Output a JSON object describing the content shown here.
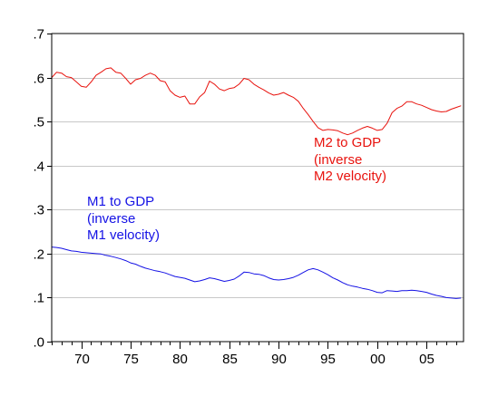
{
  "colors": {
    "m2": "#e8130e",
    "m1": "#1512e5",
    "grid": "#c8c8c8",
    "axis": "#000000",
    "background": "#ffffff"
  },
  "annotations": {
    "m2": [
      "M2 to GDP",
      "(inverse",
      "M2 velocity)"
    ],
    "m1": [
      "M1 to GDP",
      "(inverse",
      "M1 velocity)"
    ]
  },
  "chart_data": {
    "type": "line",
    "title": "",
    "xlabel": "",
    "ylabel": "",
    "xlim": [
      1967,
      2008.75
    ],
    "ylim": [
      0,
      0.7
    ],
    "grid": "horizontal",
    "legend": "none",
    "x_ticks": [
      {
        "value": 1970,
        "label": "70"
      },
      {
        "value": 1975,
        "label": "75"
      },
      {
        "value": 1980,
        "label": "80"
      },
      {
        "value": 1985,
        "label": "85"
      },
      {
        "value": 1990,
        "label": "90"
      },
      {
        "value": 1995,
        "label": "95"
      },
      {
        "value": 2000,
        "label": "00"
      },
      {
        "value": 2005,
        "label": "05"
      }
    ],
    "y_ticks": [
      {
        "value": 0.0,
        "label": ".0"
      },
      {
        "value": 0.1,
        "label": ".1"
      },
      {
        "value": 0.2,
        "label": ".2"
      },
      {
        "value": 0.3,
        "label": ".3"
      },
      {
        "value": 0.4,
        "label": ".4"
      },
      {
        "value": 0.5,
        "label": ".5"
      },
      {
        "value": 0.6,
        "label": ".6"
      },
      {
        "value": 0.7,
        "label": ".7"
      }
    ],
    "series": [
      {
        "key": "m2",
        "x": [
          1967.0,
          1967.5,
          1968.0,
          1968.5,
          1969.0,
          1969.5,
          1970.0,
          1970.5,
          1971.0,
          1971.5,
          1972.0,
          1972.5,
          1973.0,
          1973.5,
          1974.0,
          1974.5,
          1975.0,
          1975.5,
          1976.0,
          1976.5,
          1977.0,
          1977.5,
          1978.0,
          1978.5,
          1979.0,
          1979.5,
          1980.0,
          1980.5,
          1981.0,
          1981.5,
          1982.0,
          1982.5,
          1983.0,
          1983.5,
          1984.0,
          1984.5,
          1985.0,
          1985.5,
          1986.0,
          1986.5,
          1987.0,
          1987.5,
          1988.0,
          1988.5,
          1989.0,
          1989.5,
          1990.0,
          1990.5,
          1991.0,
          1991.5,
          1992.0,
          1992.5,
          1993.0,
          1993.5,
          1994.0,
          1994.5,
          1995.0,
          1995.5,
          1996.0,
          1996.5,
          1997.0,
          1997.5,
          1998.0,
          1998.5,
          1999.0,
          1999.5,
          2000.0,
          2000.5,
          2001.0,
          2001.5,
          2002.0,
          2002.5,
          2003.0,
          2003.5,
          2004.0,
          2004.5,
          2005.0,
          2005.5,
          2006.0,
          2006.5,
          2007.0,
          2007.5,
          2008.0,
          2008.5
        ],
        "values": [
          0.6,
          0.612,
          0.61,
          0.602,
          0.6,
          0.59,
          0.58,
          0.578,
          0.59,
          0.605,
          0.612,
          0.62,
          0.622,
          0.612,
          0.61,
          0.598,
          0.585,
          0.595,
          0.598,
          0.605,
          0.61,
          0.605,
          0.593,
          0.59,
          0.57,
          0.56,
          0.555,
          0.558,
          0.54,
          0.54,
          0.556,
          0.566,
          0.592,
          0.585,
          0.574,
          0.57,
          0.575,
          0.577,
          0.585,
          0.598,
          0.595,
          0.585,
          0.578,
          0.572,
          0.565,
          0.56,
          0.562,
          0.566,
          0.56,
          0.555,
          0.546,
          0.53,
          0.516,
          0.5,
          0.486,
          0.48,
          0.482,
          0.481,
          0.479,
          0.474,
          0.47,
          0.474,
          0.48,
          0.485,
          0.489,
          0.485,
          0.48,
          0.482,
          0.496,
          0.52,
          0.53,
          0.535,
          0.545,
          0.545,
          0.54,
          0.537,
          0.532,
          0.527,
          0.524,
          0.522,
          0.523,
          0.528,
          0.532,
          0.536
        ]
      },
      {
        "key": "m1",
        "x": [
          1967.0,
          1967.5,
          1968.0,
          1968.5,
          1969.0,
          1969.5,
          1970.0,
          1970.5,
          1971.0,
          1971.5,
          1972.0,
          1972.5,
          1973.0,
          1973.5,
          1974.0,
          1974.5,
          1975.0,
          1975.5,
          1976.0,
          1976.5,
          1977.0,
          1977.5,
          1978.0,
          1978.5,
          1979.0,
          1979.5,
          1980.0,
          1980.5,
          1981.0,
          1981.5,
          1982.0,
          1982.5,
          1983.0,
          1983.5,
          1984.0,
          1984.5,
          1985.0,
          1985.5,
          1986.0,
          1986.5,
          1987.0,
          1987.5,
          1988.0,
          1988.5,
          1989.0,
          1989.5,
          1990.0,
          1990.5,
          1991.0,
          1991.5,
          1992.0,
          1992.5,
          1993.0,
          1993.5,
          1994.0,
          1994.5,
          1995.0,
          1995.5,
          1996.0,
          1996.5,
          1997.0,
          1997.5,
          1998.0,
          1998.5,
          1999.0,
          1999.5,
          2000.0,
          2000.5,
          2001.0,
          2001.5,
          2002.0,
          2002.5,
          2003.0,
          2003.5,
          2004.0,
          2004.5,
          2005.0,
          2005.5,
          2006.0,
          2006.5,
          2007.0,
          2007.5,
          2008.0,
          2008.5
        ],
        "values": [
          0.215,
          0.214,
          0.212,
          0.209,
          0.206,
          0.205,
          0.203,
          0.202,
          0.201,
          0.2,
          0.199,
          0.196,
          0.194,
          0.191,
          0.188,
          0.184,
          0.179,
          0.176,
          0.171,
          0.167,
          0.164,
          0.161,
          0.159,
          0.156,
          0.152,
          0.148,
          0.146,
          0.144,
          0.14,
          0.136,
          0.138,
          0.141,
          0.145,
          0.143,
          0.14,
          0.137,
          0.139,
          0.142,
          0.149,
          0.158,
          0.157,
          0.154,
          0.153,
          0.15,
          0.145,
          0.141,
          0.14,
          0.141,
          0.143,
          0.146,
          0.151,
          0.157,
          0.163,
          0.166,
          0.163,
          0.158,
          0.152,
          0.145,
          0.14,
          0.134,
          0.129,
          0.126,
          0.124,
          0.121,
          0.119,
          0.116,
          0.112,
          0.111,
          0.116,
          0.115,
          0.114,
          0.116,
          0.116,
          0.117,
          0.116,
          0.114,
          0.112,
          0.108,
          0.105,
          0.103,
          0.1,
          0.099,
          0.098,
          0.099
        ]
      }
    ]
  }
}
